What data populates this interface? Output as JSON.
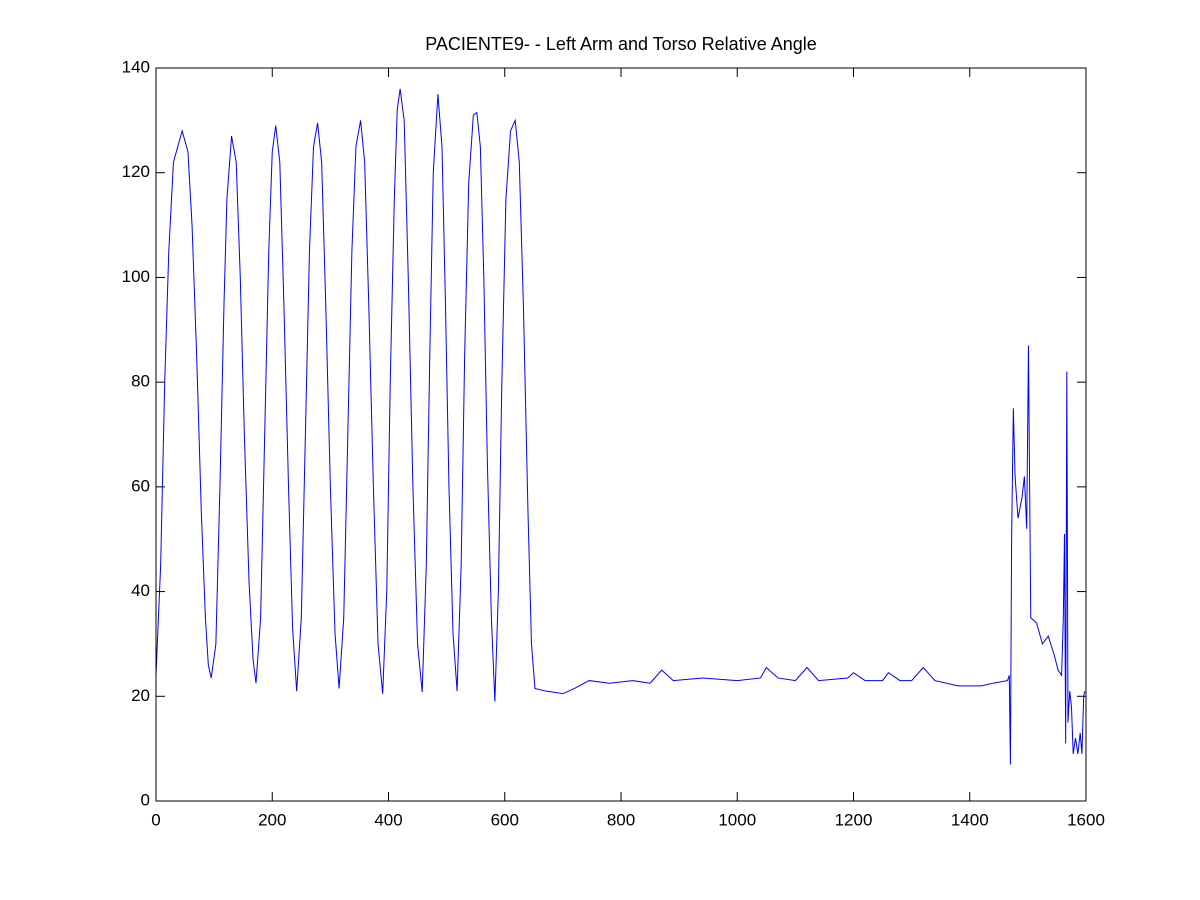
{
  "chart_data": {
    "type": "line",
    "title": "PACIENTE9- - Left Arm and Torso Relative Angle",
    "xlim": [
      0,
      1600
    ],
    "xticks": [
      0,
      200,
      400,
      600,
      800,
      1000,
      1200,
      1400,
      1600
    ],
    "ylim": [
      0,
      140
    ],
    "yticks": [
      0,
      20,
      40,
      60,
      80,
      100,
      120,
      140
    ],
    "grid": false,
    "x": [
      0,
      8,
      15,
      22,
      30,
      45,
      55,
      62,
      70,
      78,
      85,
      90,
      95,
      103,
      110,
      117,
      122,
      130,
      138,
      145,
      152,
      160,
      167,
      172,
      180,
      187,
      194,
      200,
      206,
      213,
      220,
      228,
      235,
      242,
      250,
      257,
      264,
      271,
      278,
      285,
      292,
      300,
      308,
      315,
      323,
      330,
      337,
      344,
      352,
      359,
      366,
      374,
      382,
      390,
      397,
      403,
      410,
      415,
      420,
      427,
      434,
      442,
      450,
      458,
      465,
      471,
      477,
      485,
      492,
      498,
      504,
      511,
      518,
      525,
      531,
      538,
      546,
      552,
      558,
      564,
      570,
      577,
      583,
      589,
      595,
      602,
      610,
      618,
      625,
      632,
      640,
      646,
      652,
      670,
      700,
      720,
      745,
      780,
      820,
      850,
      870,
      890,
      940,
      1000,
      1040,
      1050,
      1070,
      1100,
      1120,
      1140,
      1190,
      1200,
      1220,
      1250,
      1260,
      1280,
      1300,
      1320,
      1340,
      1380,
      1420,
      1440,
      1465,
      1468,
      1470,
      1472,
      1475,
      1478,
      1483,
      1490,
      1494,
      1498,
      1501,
      1503,
      1505,
      1515,
      1525,
      1535,
      1545,
      1552,
      1558,
      1561,
      1563,
      1565,
      1567,
      1569,
      1572,
      1575,
      1578,
      1582,
      1586,
      1590,
      1593,
      1596,
      1598
    ],
    "series": [
      {
        "color": "#0000ff",
        "values": [
          24,
          45,
          80,
          105,
          122,
          128,
          124,
          110,
          85,
          55,
          35,
          26,
          23.5,
          30,
          60,
          95,
          115,
          127,
          122,
          100,
          70,
          42,
          27,
          22.5,
          35,
          70,
          105,
          124,
          129,
          122,
          95,
          60,
          33,
          21,
          35,
          70,
          105,
          125,
          129.5,
          122,
          95,
          60,
          32,
          21.5,
          35,
          70,
          105,
          125,
          130,
          122,
          95,
          60,
          30,
          20.5,
          40,
          80,
          115,
          132,
          136,
          130,
          100,
          60,
          30,
          20.8,
          45,
          85,
          120,
          135,
          125,
          95,
          60,
          32,
          21,
          45,
          85,
          118,
          131,
          131.5,
          125,
          100,
          65,
          35,
          19,
          40,
          80,
          115,
          128,
          130,
          122,
          95,
          55,
          30,
          21.5,
          21,
          20.5,
          21.5,
          23,
          22.5,
          23,
          22.5,
          25,
          23,
          23.5,
          23,
          23.5,
          25.5,
          23.5,
          23,
          25.5,
          23,
          23.5,
          24.5,
          23,
          23,
          24.5,
          23,
          23,
          25.5,
          23,
          22,
          22,
          22.5,
          23,
          24,
          7,
          50,
          75,
          62,
          54,
          58,
          62,
          52,
          87,
          60,
          35,
          34,
          30,
          31.5,
          28,
          25,
          24,
          35,
          51,
          11,
          82,
          15,
          21,
          18,
          9,
          12,
          9,
          13,
          9,
          20,
          21
        ]
      }
    ]
  }
}
